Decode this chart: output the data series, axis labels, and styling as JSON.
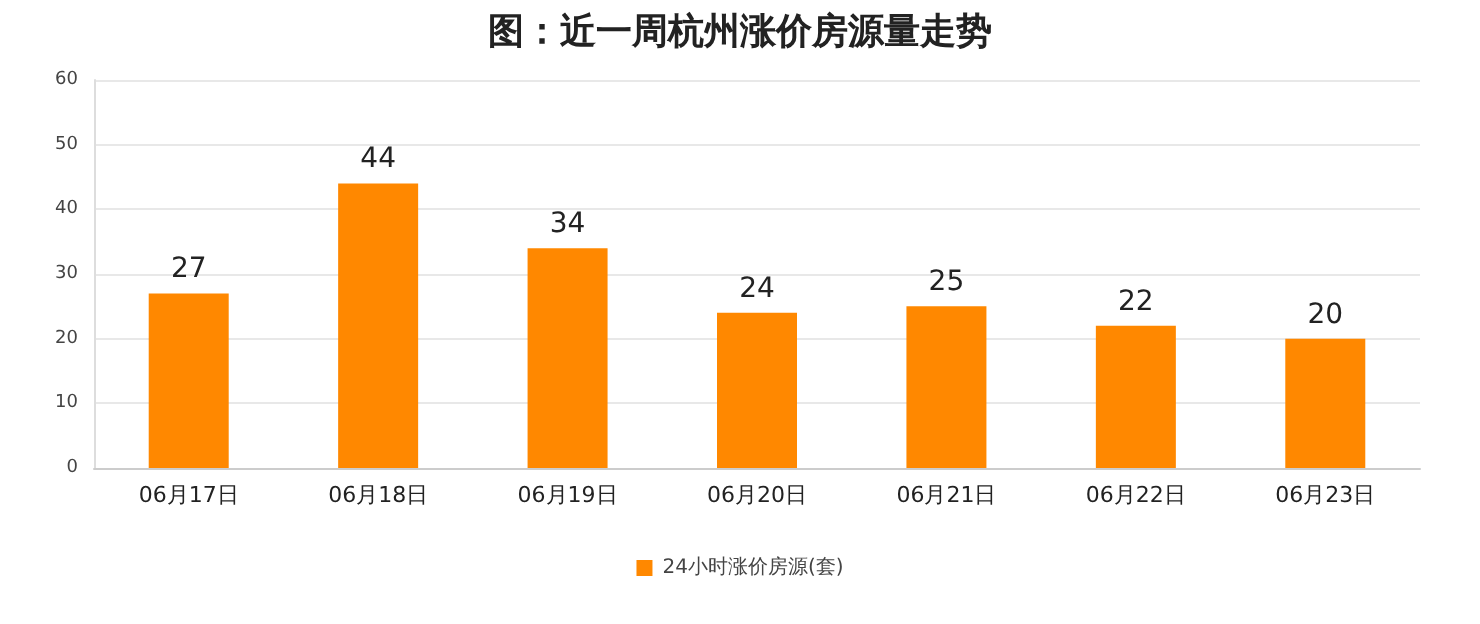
{
  "chart_data": {
    "type": "bar",
    "title": "图：近一周杭州涨价房源量走势",
    "categories": [
      "06月17日",
      "06月18日",
      "06月19日",
      "06月20日",
      "06月21日",
      "06月22日",
      "06月23日"
    ],
    "series": [
      {
        "name": "24小时涨价房源(套)",
        "color": "#ff8800",
        "values": [
          27,
          44,
          34,
          24,
          25,
          22,
          20
        ]
      }
    ],
    "ylim": [
      0,
      60
    ],
    "yticks": [
      0,
      10,
      20,
      30,
      40,
      50,
      60
    ],
    "grid": "y",
    "legend": "bottom",
    "data_labels": true
  }
}
